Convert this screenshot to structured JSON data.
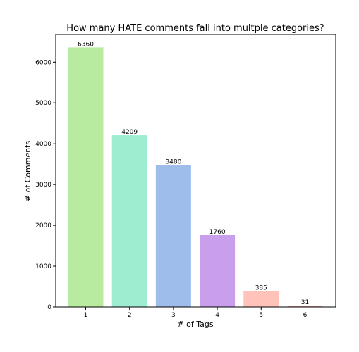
{
  "chart_data": {
    "type": "bar",
    "title": "How many HATE comments fall into multple categories?",
    "xlabel": "# of Tags",
    "ylabel": "# of Comments",
    "categories": [
      "1",
      "2",
      "3",
      "4",
      "5",
      "6"
    ],
    "values": [
      6360,
      4209,
      3480,
      1760,
      385,
      31
    ],
    "data_labels": [
      "6360",
      "4209",
      "3480",
      "1760",
      "385",
      "31"
    ],
    "colors": [
      "#b8eb9f",
      "#9eedd0",
      "#9ebdea",
      "#c99eeb",
      "#ffc3b9",
      "#f5a7a7"
    ],
    "ylim": [
      0,
      6678
    ],
    "yticks": [
      0,
      1000,
      2000,
      3000,
      4000,
      5000,
      6000
    ],
    "ytick_labels": [
      "0",
      "1000",
      "2000",
      "3000",
      "4000",
      "5000",
      "6000"
    ],
    "grid": false,
    "legend": "none"
  }
}
